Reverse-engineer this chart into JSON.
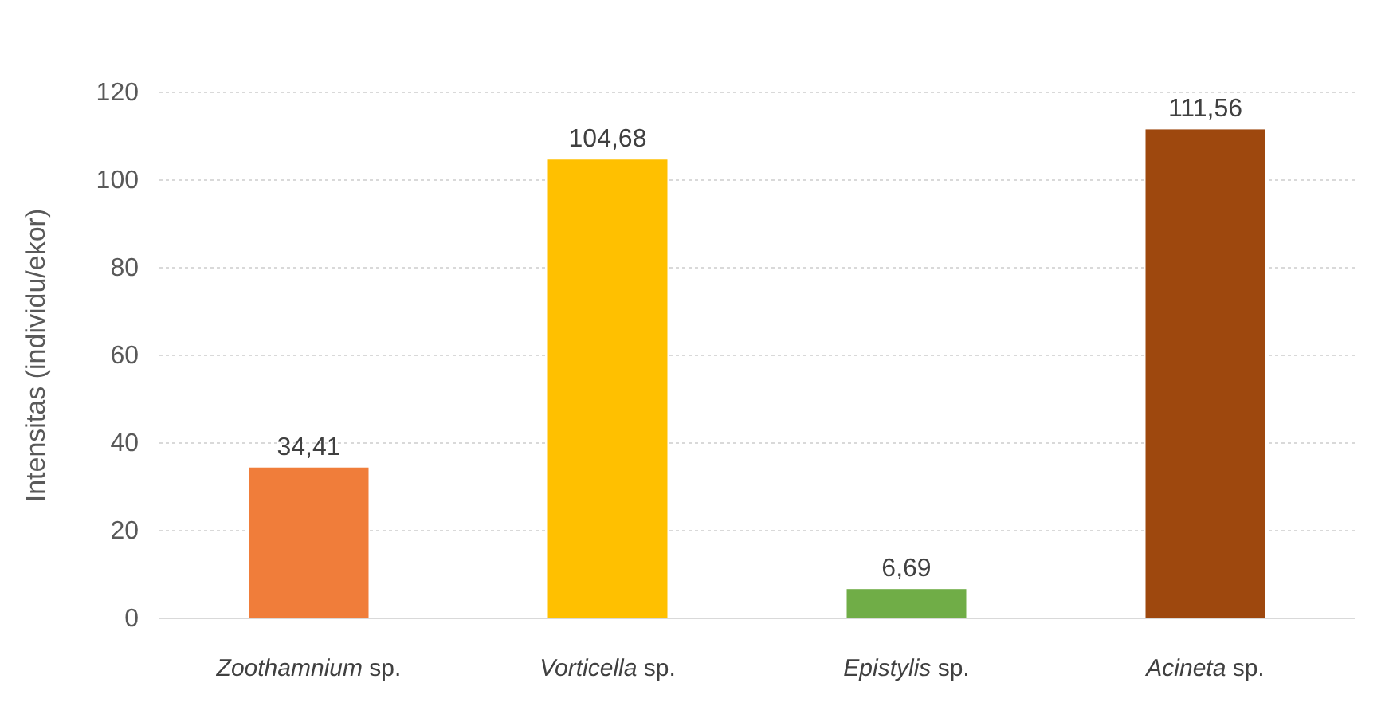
{
  "chart_data": {
    "type": "bar",
    "ylabel": "Intensitas (individu/ekor)",
    "categories": [
      "Zoothamnium sp.",
      "Vorticella sp.",
      "Epistylis sp.",
      "Acineta sp."
    ],
    "values": [
      34.41,
      104.68,
      6.69,
      111.56
    ],
    "colors": [
      "#f07d3a",
      "#ffc000",
      "#70ad47",
      "#9e480e"
    ],
    "value_labels": [
      "34,41",
      "104,68",
      "6,69",
      "111,56"
    ],
    "ylim": [
      0,
      120
    ],
    "yticks": [
      0,
      20,
      40,
      60,
      80,
      100,
      120
    ],
    "grid": "y"
  }
}
